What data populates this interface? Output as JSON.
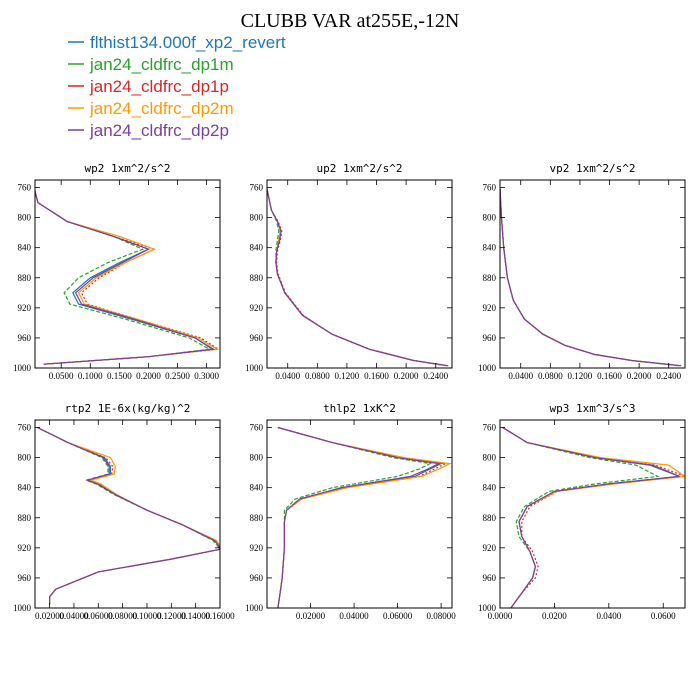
{
  "title": "CLUBB VAR at255E,-12N",
  "legend": [
    {
      "label": "flthist134.000f_xp2_revert",
      "color": "#1f77b4",
      "dash": ""
    },
    {
      "label": "jan24_cldfrc_dp1m",
      "color": "#2ca02c",
      "dash": "4,2"
    },
    {
      "label": "jan24_cldfrc_dp1p",
      "color": "#d62728",
      "dash": "2,2"
    },
    {
      "label": "jan24_cldfrc_dp2m",
      "color": "#ff9900",
      "dash": ""
    },
    {
      "label": "jan24_cldfrc_dp2p",
      "color": "#7b3f9e",
      "dash": ""
    }
  ],
  "chart_data": [
    {
      "type": "line",
      "title": "wp2  1xm^2/s^2",
      "xlim": [
        0.005,
        0.323
      ],
      "ylim": [
        1000,
        750
      ],
      "xticks": [
        0.05,
        0.1,
        0.15,
        0.2,
        0.25,
        0.3
      ],
      "xtick_labels": [
        "0.0500",
        "0.1000",
        "0.1500",
        "0.2000",
        "0.2500",
        "0.3000"
      ],
      "yticks": [
        760,
        800,
        840,
        880,
        920,
        960,
        1000
      ],
      "ytick_labels": [
        "760",
        "800",
        "840",
        "880",
        "920",
        "960",
        "1000"
      ],
      "y": [
        765,
        780,
        805,
        825,
        842,
        860,
        880,
        900,
        915,
        935,
        960,
        975,
        985,
        995
      ],
      "series": [
        {
          "values": [
            0.005,
            0.01,
            0.06,
            0.14,
            0.2,
            0.15,
            0.1,
            0.07,
            0.08,
            0.17,
            0.28,
            0.31,
            0.2,
            0.02
          ]
        },
        {
          "values": [
            0.005,
            0.01,
            0.06,
            0.14,
            0.19,
            0.13,
            0.08,
            0.055,
            0.065,
            0.16,
            0.27,
            0.305,
            0.2,
            0.02
          ]
        },
        {
          "values": [
            0.005,
            0.01,
            0.06,
            0.14,
            0.21,
            0.16,
            0.115,
            0.085,
            0.095,
            0.18,
            0.29,
            0.32,
            0.2,
            0.02
          ]
        },
        {
          "values": [
            0.005,
            0.01,
            0.06,
            0.15,
            0.21,
            0.16,
            0.11,
            0.08,
            0.09,
            0.18,
            0.285,
            0.318,
            0.2,
            0.02
          ]
        },
        {
          "values": [
            0.005,
            0.01,
            0.06,
            0.14,
            0.2,
            0.155,
            0.105,
            0.075,
            0.085,
            0.175,
            0.28,
            0.312,
            0.2,
            0.02
          ]
        }
      ]
    },
    {
      "type": "line",
      "title": "up2  1xm^2/s^2",
      "xlim": [
        0.012,
        0.262
      ],
      "ylim": [
        1000,
        750
      ],
      "xticks": [
        0.04,
        0.08,
        0.12,
        0.16,
        0.2,
        0.24
      ],
      "xtick_labels": [
        "0.0400",
        "0.0800",
        "0.1200",
        "0.1600",
        "0.2000",
        "0.2400"
      ],
      "yticks": [
        760,
        800,
        840,
        880,
        920,
        960,
        1000
      ],
      "ytick_labels": [
        "760",
        "800",
        "840",
        "880",
        "920",
        "960",
        "1000"
      ],
      "y": [
        762,
        790,
        805,
        818,
        830,
        845,
        860,
        875,
        900,
        930,
        955,
        975,
        990,
        997
      ],
      "series": [
        {
          "values": [
            0.012,
            0.018,
            0.026,
            0.03,
            0.028,
            0.025,
            0.024,
            0.026,
            0.036,
            0.06,
            0.1,
            0.15,
            0.21,
            0.255
          ]
        },
        {
          "values": [
            0.012,
            0.018,
            0.025,
            0.028,
            0.026,
            0.024,
            0.024,
            0.026,
            0.036,
            0.06,
            0.1,
            0.15,
            0.21,
            0.253
          ]
        },
        {
          "values": [
            0.012,
            0.018,
            0.027,
            0.032,
            0.03,
            0.026,
            0.025,
            0.027,
            0.037,
            0.061,
            0.1,
            0.151,
            0.211,
            0.257
          ]
        },
        {
          "values": [
            0.012,
            0.018,
            0.026,
            0.03,
            0.028,
            0.025,
            0.024,
            0.026,
            0.036,
            0.06,
            0.1,
            0.15,
            0.21,
            0.255
          ]
        },
        {
          "values": [
            0.012,
            0.018,
            0.026,
            0.031,
            0.029,
            0.025,
            0.024,
            0.026,
            0.036,
            0.06,
            0.1,
            0.15,
            0.21,
            0.256
          ]
        }
      ]
    },
    {
      "type": "line",
      "title": "vp2  1xm^2/s^2",
      "xlim": [
        0.012,
        0.262
      ],
      "ylim": [
        1000,
        750
      ],
      "xticks": [
        0.04,
        0.08,
        0.12,
        0.16,
        0.2,
        0.24
      ],
      "xtick_labels": [
        "0.0400",
        "0.0800",
        "0.1200",
        "0.1600",
        "0.2000",
        "0.2400"
      ],
      "yticks": [
        760,
        800,
        840,
        880,
        920,
        960,
        1000
      ],
      "ytick_labels": [
        "760",
        "800",
        "840",
        "880",
        "920",
        "960",
        "1000"
      ],
      "y": [
        762,
        800,
        840,
        880,
        910,
        935,
        955,
        970,
        982,
        990,
        997
      ],
      "series": [
        {
          "values": [
            0.012,
            0.014,
            0.017,
            0.022,
            0.03,
            0.045,
            0.07,
            0.1,
            0.14,
            0.19,
            0.255
          ]
        },
        {
          "values": [
            0.012,
            0.014,
            0.017,
            0.022,
            0.03,
            0.045,
            0.07,
            0.1,
            0.14,
            0.19,
            0.253
          ]
        },
        {
          "values": [
            0.012,
            0.014,
            0.017,
            0.022,
            0.03,
            0.045,
            0.07,
            0.1,
            0.14,
            0.19,
            0.257
          ]
        },
        {
          "values": [
            0.012,
            0.014,
            0.017,
            0.022,
            0.03,
            0.045,
            0.07,
            0.1,
            0.14,
            0.19,
            0.255
          ]
        },
        {
          "values": [
            0.012,
            0.014,
            0.017,
            0.022,
            0.03,
            0.045,
            0.07,
            0.1,
            0.14,
            0.19,
            0.256
          ]
        }
      ]
    },
    {
      "type": "line",
      "title": "rtp2  1E-6x(kg/kg)^2",
      "xlim": [
        0.008,
        0.16
      ],
      "ylim": [
        1000,
        750
      ],
      "xticks": [
        0.02,
        0.04,
        0.06,
        0.08,
        0.1,
        0.12,
        0.14,
        0.16
      ],
      "xtick_labels": [
        "0.02000",
        "0.04000",
        "0.06000",
        "0.08000",
        "0.10000",
        "0.12000",
        "0.14000",
        "0.16000"
      ],
      "yticks": [
        760,
        800,
        840,
        880,
        920,
        960,
        1000
      ],
      "ytick_labels": [
        "760",
        "800",
        "840",
        "880",
        "920",
        "960",
        "1000"
      ],
      "y": [
        760,
        780,
        800,
        812,
        822,
        830,
        835,
        850,
        870,
        890,
        910,
        915,
        922,
        935,
        952,
        975,
        985,
        995
      ],
      "series": [
        {
          "values": [
            0.01,
            0.035,
            0.065,
            0.07,
            0.07,
            0.052,
            0.06,
            0.075,
            0.1,
            0.13,
            0.155,
            0.158,
            0.16,
            0.12,
            0.06,
            0.025,
            0.02,
            0.02
          ]
        },
        {
          "values": [
            0.01,
            0.035,
            0.063,
            0.068,
            0.068,
            0.05,
            0.058,
            0.074,
            0.1,
            0.13,
            0.154,
            0.157,
            0.16,
            0.12,
            0.06,
            0.025,
            0.02,
            0.02
          ]
        },
        {
          "values": [
            0.01,
            0.035,
            0.066,
            0.072,
            0.071,
            0.053,
            0.061,
            0.075,
            0.1,
            0.13,
            0.156,
            0.158,
            0.16,
            0.12,
            0.06,
            0.025,
            0.02,
            0.02
          ]
        },
        {
          "values": [
            0.01,
            0.035,
            0.07,
            0.074,
            0.073,
            0.054,
            0.062,
            0.076,
            0.1,
            0.13,
            0.157,
            0.159,
            0.16,
            0.12,
            0.06,
            0.025,
            0.02,
            0.02
          ]
        },
        {
          "values": [
            0.01,
            0.035,
            0.064,
            0.069,
            0.069,
            0.051,
            0.059,
            0.075,
            0.1,
            0.13,
            0.155,
            0.158,
            0.16,
            0.12,
            0.06,
            0.025,
            0.02,
            0.02
          ]
        }
      ]
    },
    {
      "type": "line",
      "title": "thlp2  1xK^2",
      "xlim": [
        0.0,
        0.085
      ],
      "ylim": [
        1000,
        750
      ],
      "xticks": [
        0.02,
        0.04,
        0.06,
        0.08
      ],
      "xtick_labels": [
        "0.02000",
        "0.04000",
        "0.06000",
        "0.08000"
      ],
      "yticks": [
        760,
        800,
        840,
        880,
        920,
        960,
        1000
      ],
      "ytick_labels": [
        "760",
        "800",
        "840",
        "880",
        "920",
        "960",
        "1000"
      ],
      "y": [
        760,
        780,
        800,
        808,
        815,
        825,
        840,
        855,
        870,
        885,
        920,
        960,
        980,
        1000
      ],
      "series": [
        {
          "values": [
            0.005,
            0.03,
            0.06,
            0.08,
            0.075,
            0.068,
            0.035,
            0.015,
            0.009,
            0.008,
            0.008,
            0.007,
            0.006,
            0.005
          ]
        },
        {
          "values": [
            0.005,
            0.03,
            0.058,
            0.075,
            0.07,
            0.06,
            0.03,
            0.013,
            0.008,
            0.008,
            0.008,
            0.007,
            0.006,
            0.005
          ]
        },
        {
          "values": [
            0.005,
            0.03,
            0.061,
            0.082,
            0.077,
            0.07,
            0.036,
            0.016,
            0.009,
            0.008,
            0.008,
            0.007,
            0.006,
            0.005
          ]
        },
        {
          "values": [
            0.005,
            0.03,
            0.063,
            0.084,
            0.079,
            0.071,
            0.037,
            0.016,
            0.009,
            0.008,
            0.008,
            0.007,
            0.006,
            0.005
          ]
        },
        {
          "values": [
            0.005,
            0.03,
            0.06,
            0.079,
            0.074,
            0.066,
            0.034,
            0.015,
            0.009,
            0.008,
            0.008,
            0.007,
            0.006,
            0.005
          ]
        }
      ]
    },
    {
      "type": "line",
      "title": "wp3  1xm^3/s^3",
      "xlim": [
        0.0,
        0.068
      ],
      "ylim": [
        1000,
        750
      ],
      "xticks": [
        0.0,
        0.02,
        0.04,
        0.06
      ],
      "xtick_labels": [
        "0.0000",
        "0.0200",
        "0.0400",
        "0.0600"
      ],
      "yticks": [
        760,
        800,
        840,
        880,
        920,
        960,
        1000
      ],
      "ytick_labels": [
        "760",
        "800",
        "840",
        "880",
        "920",
        "960",
        "1000"
      ],
      "y": [
        760,
        780,
        800,
        810,
        825,
        835,
        845,
        865,
        885,
        905,
        925,
        945,
        960,
        980,
        1000
      ],
      "series": [
        {
          "values": [
            0.001,
            0.01,
            0.035,
            0.055,
            0.066,
            0.04,
            0.02,
            0.01,
            0.007,
            0.008,
            0.011,
            0.013,
            0.012,
            0.008,
            0.004
          ]
        },
        {
          "values": [
            0.001,
            0.01,
            0.033,
            0.05,
            0.058,
            0.035,
            0.018,
            0.009,
            0.006,
            0.007,
            0.011,
            0.013,
            0.012,
            0.008,
            0.004
          ]
        },
        {
          "values": [
            0.001,
            0.01,
            0.036,
            0.057,
            0.068,
            0.041,
            0.021,
            0.011,
            0.008,
            0.008,
            0.012,
            0.014,
            0.013,
            0.008,
            0.004
          ]
        },
        {
          "values": [
            0.001,
            0.01,
            0.037,
            0.062,
            0.068,
            0.042,
            0.021,
            0.01,
            0.007,
            0.008,
            0.011,
            0.013,
            0.012,
            0.008,
            0.004
          ]
        },
        {
          "values": [
            0.001,
            0.01,
            0.035,
            0.056,
            0.066,
            0.04,
            0.02,
            0.01,
            0.007,
            0.008,
            0.011,
            0.013,
            0.012,
            0.008,
            0.004
          ]
        }
      ]
    }
  ]
}
